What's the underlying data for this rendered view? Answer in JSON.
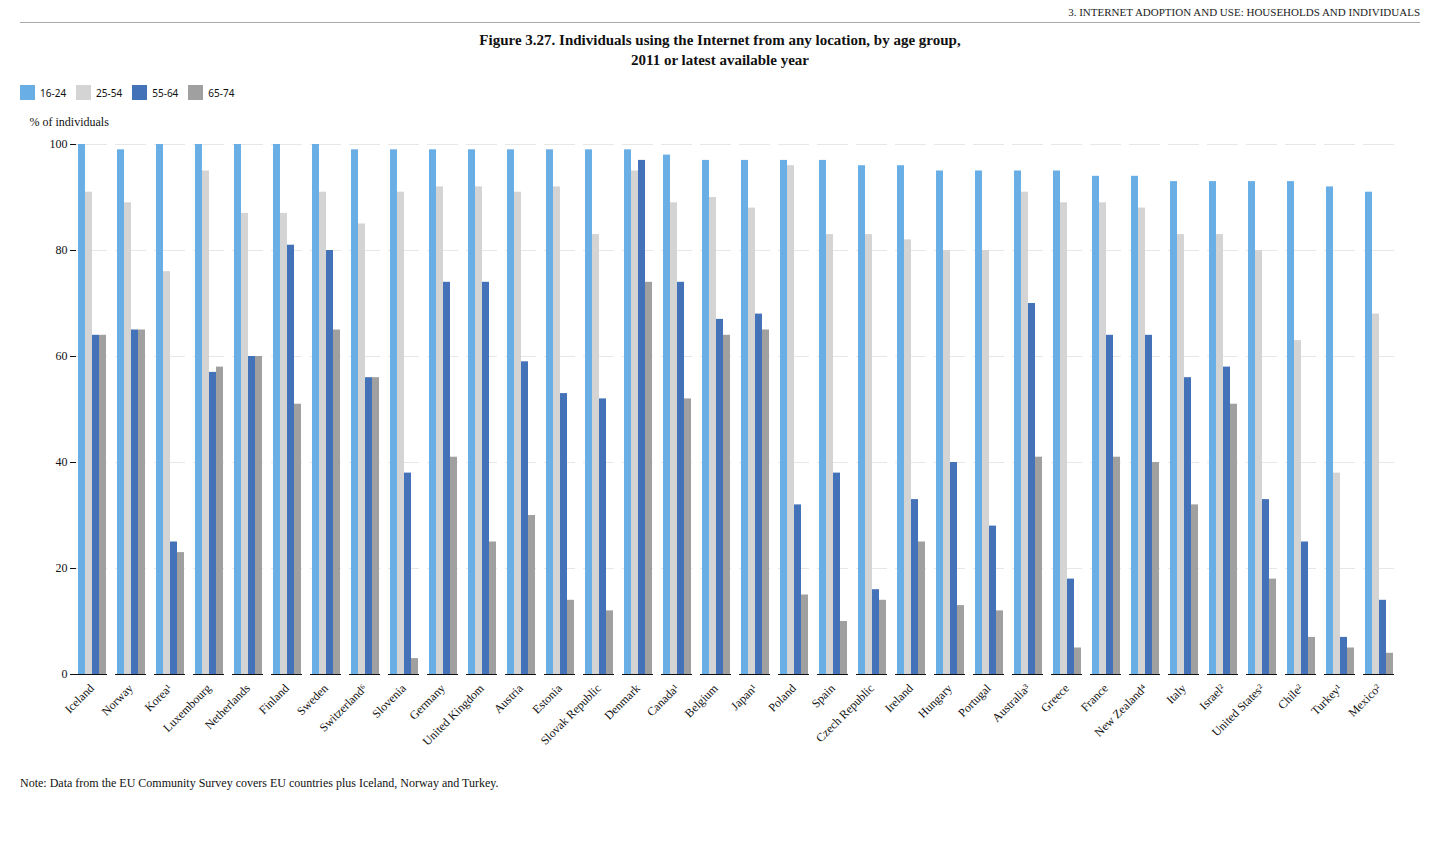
{
  "chart_data": {
    "type": "bar",
    "title": "Figure 3.27.  Individuals using the Internet from any location, by age group,\n2011 or latest available year",
    "annotations": [
      "3.   INTERNET ADOPTION AND USE: HOUSEHOLDS AND INDIVIDUALS",
      "Note: Data from the EU Community Survey covers EU countries plus Iceland, Norway and Turkey."
    ],
    "ylabel": "% of individuals",
    "categories": [
      "Iceland",
      "Norway",
      "Korea¹",
      "Luxembourg",
      "Netherlands",
      "Finland",
      "Sweden",
      "Switzerland⁶",
      "Slovenia",
      "Germany",
      "United Kingdom",
      "Austria",
      "Estonia",
      "Slovak Republic",
      "Denmark",
      "Canada¹",
      "Belgium",
      "Japan¹",
      "Poland",
      "Spain",
      "Czech Republic",
      "Ireland",
      "Hungary",
      "Portugal",
      "Australia³",
      "Greece",
      "France",
      "New Zealand⁴",
      "Italy",
      "Israel²",
      "United States²",
      "Chile²",
      "Turkey¹",
      "Mexico²"
    ],
    "series": [
      {
        "name": "16-24",
        "color": "#6aaee6",
        "values": [
          100,
          99,
          100,
          100,
          100,
          100,
          100,
          99,
          99,
          99,
          99,
          99,
          99,
          99,
          99,
          98,
          97,
          97,
          97,
          97,
          96,
          96,
          95,
          95,
          95,
          95,
          94,
          94,
          93,
          93,
          93,
          93,
          92,
          91
        ]
      },
      {
        "name": "25-54",
        "color": "#d4d4d4",
        "values": [
          91,
          89,
          76,
          95,
          87,
          87,
          91,
          85,
          91,
          92,
          92,
          91,
          92,
          83,
          95,
          89,
          90,
          88,
          96,
          83,
          83,
          82,
          80,
          80,
          91,
          89,
          89,
          88,
          83,
          83,
          80,
          63,
          38,
          68
        ]
      },
      {
        "name": "55-64",
        "color": "#4472b8",
        "values": [
          64,
          65,
          25,
          57,
          60,
          81,
          80,
          56,
          38,
          74,
          74,
          59,
          53,
          52,
          97,
          74,
          67,
          68,
          32,
          38,
          16,
          33,
          40,
          28,
          70,
          18,
          64,
          64,
          56,
          58,
          33,
          25,
          7,
          14
        ]
      },
      {
        "name": "65-74",
        "color": "#a0a0a0",
        "values": [
          64,
          65,
          23,
          58,
          60,
          51,
          65,
          56,
          3,
          41,
          25,
          30,
          14,
          12,
          74,
          52,
          64,
          65,
          15,
          10,
          14,
          25,
          13,
          12,
          41,
          5,
          41,
          40,
          32,
          51,
          18,
          7,
          5,
          4
        ]
      }
    ],
    "ylim": [
      0,
      100
    ],
    "yticks": [
      0,
      20,
      40,
      60,
      80,
      100
    ],
    "grid": true,
    "legend": "top"
  }
}
